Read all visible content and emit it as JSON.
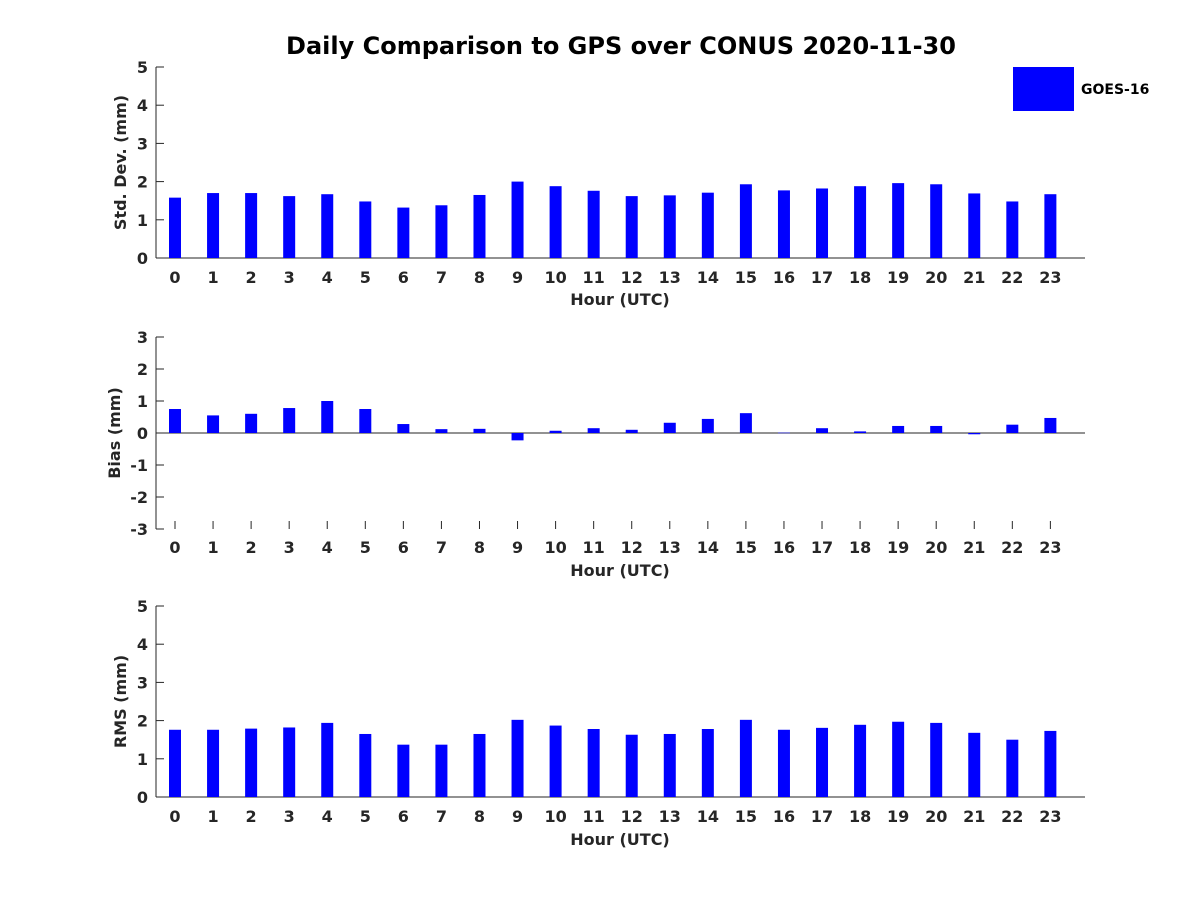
{
  "title": "Daily Comparison to GPS over CONUS 2020-11-30",
  "legend": {
    "label": "GOES-16",
    "color": "#0000ff"
  },
  "chart_data": [
    {
      "type": "bar",
      "xlabel": "Hour (UTC)",
      "ylabel": "Std. Dev. (mm)",
      "ylim": [
        0,
        5
      ],
      "yticks": [
        0,
        1,
        2,
        3,
        4,
        5
      ],
      "categories": [
        "0",
        "1",
        "2",
        "3",
        "4",
        "5",
        "6",
        "7",
        "8",
        "9",
        "10",
        "11",
        "12",
        "13",
        "14",
        "15",
        "16",
        "17",
        "18",
        "19",
        "20",
        "21",
        "22",
        "23"
      ],
      "series": [
        {
          "name": "GOES-16",
          "values": [
            1.58,
            1.7,
            1.7,
            1.62,
            1.67,
            1.48,
            1.32,
            1.38,
            1.65,
            2.0,
            1.88,
            1.76,
            1.62,
            1.64,
            1.71,
            1.93,
            1.77,
            1.82,
            1.88,
            1.96,
            1.93,
            1.69,
            1.48,
            1.67
          ]
        }
      ]
    },
    {
      "type": "bar",
      "xlabel": "Hour (UTC)",
      "ylabel": "Bias (mm)",
      "ylim": [
        -3,
        3
      ],
      "yticks": [
        -3,
        -2,
        -1,
        0,
        1,
        2,
        3
      ],
      "categories": [
        "0",
        "1",
        "2",
        "3",
        "4",
        "5",
        "6",
        "7",
        "8",
        "9",
        "10",
        "11",
        "12",
        "13",
        "14",
        "15",
        "16",
        "17",
        "18",
        "19",
        "20",
        "21",
        "22",
        "23"
      ],
      "series": [
        {
          "name": "GOES-16",
          "values": [
            0.75,
            0.55,
            0.6,
            0.78,
            1.0,
            0.75,
            0.28,
            0.12,
            0.13,
            -0.23,
            0.07,
            0.15,
            0.1,
            0.32,
            0.44,
            0.62,
            0.01,
            0.15,
            0.05,
            0.22,
            0.22,
            -0.04,
            0.26,
            0.47
          ]
        }
      ]
    },
    {
      "type": "bar",
      "xlabel": "Hour (UTC)",
      "ylabel": "RMS (mm)",
      "ylim": [
        0,
        5
      ],
      "yticks": [
        0,
        1,
        2,
        3,
        4,
        5
      ],
      "categories": [
        "0",
        "1",
        "2",
        "3",
        "4",
        "5",
        "6",
        "7",
        "8",
        "9",
        "10",
        "11",
        "12",
        "13",
        "14",
        "15",
        "16",
        "17",
        "18",
        "19",
        "20",
        "21",
        "22",
        "23"
      ],
      "series": [
        {
          "name": "GOES-16",
          "values": [
            1.76,
            1.76,
            1.79,
            1.82,
            1.94,
            1.65,
            1.37,
            1.37,
            1.65,
            2.02,
            1.87,
            1.78,
            1.63,
            1.65,
            1.78,
            2.02,
            1.76,
            1.81,
            1.89,
            1.97,
            1.94,
            1.68,
            1.5,
            1.73
          ]
        }
      ]
    }
  ]
}
